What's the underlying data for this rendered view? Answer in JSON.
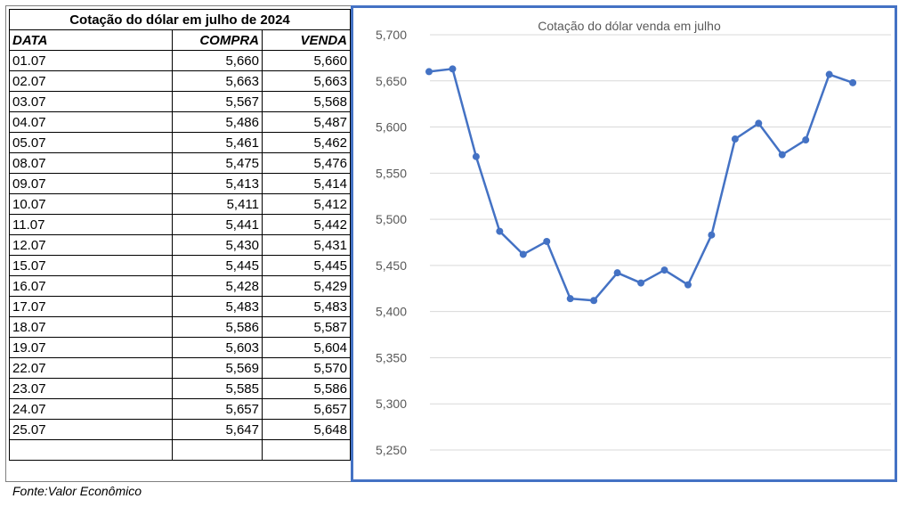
{
  "table": {
    "title": "Cotação do dólar em julho de 2024",
    "headers": {
      "date": "DATA",
      "buy": "COMPRA",
      "sell": "VENDA"
    },
    "rows": [
      {
        "date": "01.07",
        "buy": "5,660",
        "sell": "5,660"
      },
      {
        "date": "02.07",
        "buy": "5,663",
        "sell": "5,663"
      },
      {
        "date": "03.07",
        "buy": "5,567",
        "sell": "5,568"
      },
      {
        "date": "04.07",
        "buy": "5,486",
        "sell": "5,487"
      },
      {
        "date": "05.07",
        "buy": "5,461",
        "sell": "5,462"
      },
      {
        "date": "08.07",
        "buy": "5,475",
        "sell": "5,476"
      },
      {
        "date": "09.07",
        "buy": "5,413",
        "sell": "5,414"
      },
      {
        "date": "10.07",
        "buy": "5,411",
        "sell": "5,412"
      },
      {
        "date": "11.07",
        "buy": "5,441",
        "sell": "5,442"
      },
      {
        "date": "12.07",
        "buy": "5,430",
        "sell": "5,431"
      },
      {
        "date": "15.07",
        "buy": "5,445",
        "sell": "5,445"
      },
      {
        "date": "16.07",
        "buy": "5,428",
        "sell": "5,429"
      },
      {
        "date": "17.07",
        "buy": "5,483",
        "sell": "5,483"
      },
      {
        "date": "18.07",
        "buy": "5,586",
        "sell": "5,587"
      },
      {
        "date": "19.07",
        "buy": "5,603",
        "sell": "5,604"
      },
      {
        "date": "22.07",
        "buy": "5,569",
        "sell": "5,570"
      },
      {
        "date": "23.07",
        "buy": "5,585",
        "sell": "5,586"
      },
      {
        "date": "24.07",
        "buy": "5,657",
        "sell": "5,657"
      },
      {
        "date": "25.07",
        "buy": "5,647",
        "sell": "5,648"
      },
      {
        "date": "",
        "buy": "",
        "sell": ""
      }
    ]
  },
  "source": "Fonte:Valor Econômico",
  "chart_data": {
    "type": "line",
    "title": "Cotação do dólar venda  em julho",
    "xlabel": "",
    "ylabel": "",
    "ylim": [
      5.25,
      5.7
    ],
    "yticks": [
      5.25,
      5.3,
      5.35,
      5.4,
      5.45,
      5.5,
      5.55,
      5.6,
      5.65,
      5.7
    ],
    "ytick_labels": [
      "5,250",
      "5,300",
      "5,350",
      "5,400",
      "5,450",
      "5,500",
      "5,550",
      "5,600",
      "5,650",
      "5,700"
    ],
    "grid": true,
    "legend": "none",
    "color": "#4472c4",
    "series": [
      {
        "values": [
          5.66,
          5.663,
          5.568,
          5.487,
          5.462,
          5.476,
          5.414,
          5.412,
          5.442,
          5.431,
          5.445,
          5.429,
          5.483,
          5.587,
          5.604,
          5.57,
          5.586,
          5.657,
          5.648
        ]
      }
    ]
  }
}
